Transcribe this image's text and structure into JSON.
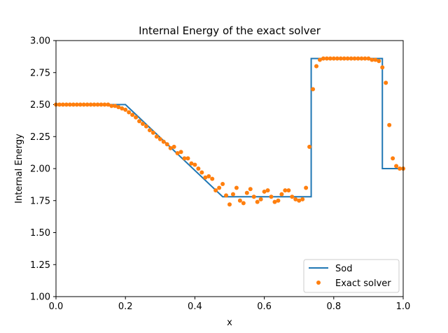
{
  "chart_data": {
    "type": "line",
    "title": "Internal Energy of the exact solver",
    "xlabel": "x",
    "ylabel": "Internal Energy",
    "xlim": [
      0,
      1
    ],
    "ylim": [
      1.0,
      3.0
    ],
    "xticks": [
      "0.0",
      "0.2",
      "0.4",
      "0.6",
      "0.8",
      "1.0"
    ],
    "yticks": [
      "1.00",
      "1.25",
      "1.50",
      "1.75",
      "2.00",
      "2.25",
      "2.50",
      "2.75",
      "3.00"
    ],
    "grid": false,
    "legend_position": "bottom-right",
    "series": [
      {
        "name": "Sod",
        "kind": "line",
        "color": "#1f77b4",
        "x": [
          0.0,
          0.2,
          0.48,
          0.735,
          0.735,
          0.94,
          0.94,
          1.0
        ],
        "y": [
          2.5,
          2.5,
          1.78,
          1.78,
          2.86,
          2.86,
          2.0,
          2.0
        ]
      },
      {
        "name": "Exact solver",
        "kind": "scatter",
        "color": "#ff7f0e",
        "x": [
          0.0,
          0.01,
          0.02,
          0.03,
          0.04,
          0.05,
          0.06,
          0.07,
          0.08,
          0.09,
          0.1,
          0.11,
          0.12,
          0.13,
          0.14,
          0.15,
          0.16,
          0.17,
          0.18,
          0.19,
          0.2,
          0.21,
          0.22,
          0.23,
          0.24,
          0.25,
          0.26,
          0.27,
          0.28,
          0.29,
          0.3,
          0.31,
          0.32,
          0.33,
          0.34,
          0.35,
          0.36,
          0.37,
          0.38,
          0.39,
          0.4,
          0.41,
          0.42,
          0.43,
          0.44,
          0.45,
          0.46,
          0.47,
          0.48,
          0.49,
          0.5,
          0.51,
          0.52,
          0.53,
          0.54,
          0.55,
          0.56,
          0.57,
          0.58,
          0.59,
          0.6,
          0.61,
          0.62,
          0.63,
          0.64,
          0.65,
          0.66,
          0.67,
          0.68,
          0.69,
          0.7,
          0.71,
          0.72,
          0.73,
          0.74,
          0.75,
          0.76,
          0.77,
          0.78,
          0.79,
          0.8,
          0.81,
          0.82,
          0.83,
          0.84,
          0.85,
          0.86,
          0.87,
          0.88,
          0.89,
          0.9,
          0.91,
          0.92,
          0.93,
          0.94,
          0.95,
          0.96,
          0.97,
          0.98,
          0.99,
          1.0
        ],
        "y": [
          2.5,
          2.5,
          2.5,
          2.5,
          2.5,
          2.5,
          2.5,
          2.5,
          2.5,
          2.5,
          2.5,
          2.5,
          2.5,
          2.5,
          2.5,
          2.5,
          2.49,
          2.49,
          2.48,
          2.47,
          2.46,
          2.44,
          2.42,
          2.4,
          2.37,
          2.35,
          2.33,
          2.3,
          2.28,
          2.25,
          2.23,
          2.21,
          2.19,
          2.16,
          2.17,
          2.12,
          2.13,
          2.08,
          2.08,
          2.04,
          2.03,
          2.0,
          1.97,
          1.93,
          1.94,
          1.92,
          1.83,
          1.85,
          1.88,
          1.79,
          1.72,
          1.8,
          1.85,
          1.75,
          1.73,
          1.81,
          1.84,
          1.78,
          1.74,
          1.76,
          1.82,
          1.83,
          1.78,
          1.74,
          1.75,
          1.8,
          1.83,
          1.83,
          1.78,
          1.76,
          1.75,
          1.76,
          1.85,
          2.17,
          2.62,
          2.8,
          2.85,
          2.86,
          2.86,
          2.86,
          2.86,
          2.86,
          2.86,
          2.86,
          2.86,
          2.86,
          2.86,
          2.86,
          2.86,
          2.86,
          2.86,
          2.85,
          2.85,
          2.84,
          2.79,
          2.67,
          2.34,
          2.08,
          2.02,
          2.0,
          2.0
        ]
      }
    ]
  }
}
